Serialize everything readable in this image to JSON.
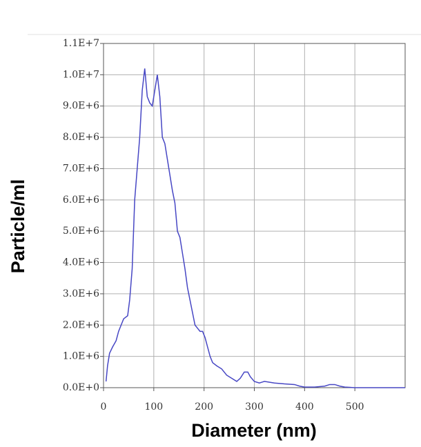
{
  "chart_data": {
    "type": "line",
    "x_label": "Diameter (nm)",
    "y_label": "Particle/ml",
    "x": [
      5,
      8,
      12,
      18,
      25,
      30,
      35,
      40,
      48,
      52,
      57,
      62,
      67,
      72,
      77,
      82,
      87,
      92,
      97,
      102,
      107,
      112,
      117,
      122,
      127,
      132,
      137,
      142,
      147,
      152,
      157,
      162,
      167,
      172,
      177,
      182,
      187,
      192,
      197,
      202,
      207,
      212,
      217,
      225,
      235,
      245,
      255,
      265,
      272,
      280,
      287,
      292,
      300,
      310,
      320,
      340,
      360,
      380,
      390,
      400,
      420,
      440,
      450,
      460,
      470,
      480,
      500,
      600
    ],
    "series": [
      {
        "name": "Particle/ml",
        "color": "#4646c4",
        "values": [
          200000,
          700000,
          1100000,
          1300000,
          1500000,
          1800000,
          2000000,
          2200000,
          2300000,
          2800000,
          3800000,
          6000000,
          7000000,
          8000000,
          9500000,
          10200000,
          9300000,
          9100000,
          9000000,
          9500000,
          10000000,
          9300000,
          8000000,
          7800000,
          7300000,
          6800000,
          6300000,
          5900000,
          5000000,
          4800000,
          4300000,
          3800000,
          3200000,
          2800000,
          2400000,
          2000000,
          1900000,
          1800000,
          1800000,
          1600000,
          1300000,
          1000000,
          800000,
          700000,
          600000,
          400000,
          300000,
          200000,
          300000,
          500000,
          500000,
          350000,
          200000,
          150000,
          200000,
          150000,
          120000,
          100000,
          50000,
          20000,
          20000,
          50000,
          100000,
          100000,
          50000,
          20000,
          0,
          0
        ]
      }
    ],
    "xlim": [
      0,
      600
    ],
    "xticks": [
      0,
      100,
      200,
      300,
      400,
      500
    ],
    "ylim": [
      0,
      11000000
    ],
    "yticks": [
      {
        "value": 0,
        "label": "0.0E+0"
      },
      {
        "value": 1000000,
        "label": "1.0E+6"
      },
      {
        "value": 2000000,
        "label": "2.0E+6"
      },
      {
        "value": 3000000,
        "label": "3.0E+6"
      },
      {
        "value": 4000000,
        "label": "4.0E+6"
      },
      {
        "value": 5000000,
        "label": "5.0E+6"
      },
      {
        "value": 6000000,
        "label": "6.0E+6"
      },
      {
        "value": 7000000,
        "label": "7.0E+6"
      },
      {
        "value": 8000000,
        "label": "8.0E+6"
      },
      {
        "value": 9000000,
        "label": "9.0E+6"
      },
      {
        "value": 10000000,
        "label": "1.0E+7"
      },
      {
        "value": 11000000,
        "label": "1.1E+7"
      }
    ],
    "grid": true
  }
}
